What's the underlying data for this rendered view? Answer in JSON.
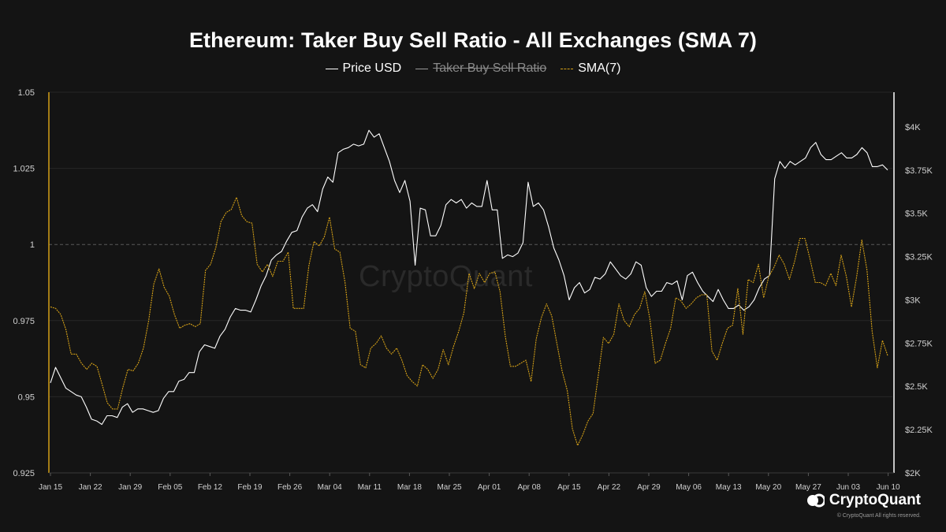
{
  "title": "Ethereum: Taker Buy Sell Ratio - All Exchanges (SMA 7)",
  "legend": [
    {
      "label": "Price USD",
      "color": "#ffffff",
      "hidden": false
    },
    {
      "label": "Taker Buy Sell Ratio",
      "color": "#9a9a9a",
      "hidden": true
    },
    {
      "label": "SMA(7)",
      "color": "#d4a017",
      "hidden": false
    }
  ],
  "watermark": "CryptoQuant",
  "brand": {
    "name": "CryptoQuant",
    "copyright": "© CryptoQuant All rights reserved."
  },
  "chart_data": {
    "type": "line",
    "title": "Ethereum: Taker Buy Sell Ratio - All Exchanges (SMA 7)",
    "x_tick_labels": [
      "Jan 15",
      "Jan 22",
      "Jan 29",
      "Feb 05",
      "Feb 12",
      "Feb 19",
      "Feb 26",
      "Mar 04",
      "Mar 11",
      "Mar 18",
      "Mar 25",
      "Apr 01",
      "Apr 08",
      "Apr 15",
      "Apr 22",
      "Apr 29",
      "May 06",
      "May 13",
      "May 20",
      "May 27",
      "Jun 03",
      "Jun 10"
    ],
    "x_range": [
      "Jan 15",
      "Jun 11"
    ],
    "left_axis": {
      "ticks": [
        "0.925",
        "0.95",
        "0.975",
        "1",
        "1.025",
        "1.05"
      ],
      "range": [
        0.925,
        1.05
      ],
      "reference_line": 1.0
    },
    "right_axis": {
      "ticks": [
        "$2K",
        "$2.25K",
        "$2.5K",
        "$2.75K",
        "$3K",
        "$3.25K",
        "$3.5K",
        "$3.75K",
        "$4K"
      ],
      "range": [
        2000,
        4200
      ]
    },
    "series": [
      {
        "name": "Price USD",
        "axis": "right",
        "color": "#ffffff",
        "values": [
          2520,
          2610,
          2550,
          2490,
          2470,
          2450,
          2440,
          2380,
          2310,
          2300,
          2280,
          2330,
          2330,
          2320,
          2380,
          2400,
          2350,
          2370,
          2370,
          2360,
          2350,
          2360,
          2430,
          2470,
          2470,
          2530,
          2540,
          2580,
          2580,
          2700,
          2740,
          2730,
          2720,
          2790,
          2830,
          2900,
          2950,
          2940,
          2940,
          2930,
          3000,
          3080,
          3140,
          3230,
          3260,
          3280,
          3340,
          3390,
          3400,
          3480,
          3530,
          3550,
          3510,
          3640,
          3710,
          3680,
          3850,
          3870,
          3880,
          3900,
          3890,
          3900,
          3980,
          3940,
          3960,
          3880,
          3800,
          3690,
          3620,
          3690,
          3570,
          3200,
          3530,
          3520,
          3370,
          3370,
          3430,
          3550,
          3580,
          3560,
          3580,
          3530,
          3560,
          3540,
          3540,
          3690,
          3520,
          3520,
          3240,
          3260,
          3250,
          3270,
          3330,
          3680,
          3540,
          3560,
          3520,
          3420,
          3300,
          3230,
          3140,
          3000,
          3070,
          3100,
          3040,
          3060,
          3130,
          3120,
          3150,
          3220,
          3180,
          3140,
          3120,
          3150,
          3220,
          3200,
          3070,
          3020,
          3050,
          3050,
          3100,
          3090,
          3110,
          3000,
          3140,
          3160,
          3100,
          3050,
          3020,
          2990,
          3060,
          3000,
          2950,
          2950,
          2970,
          2940,
          2960,
          3000,
          3070,
          3120,
          3140,
          3700,
          3800,
          3760,
          3800,
          3780,
          3800,
          3820,
          3880,
          3910,
          3840,
          3810,
          3810,
          3830,
          3850,
          3820,
          3820,
          3840,
          3880,
          3850,
          3770,
          3770,
          3780,
          3750
        ],
        "note": "daily closing price in USD, Jan 15 - Jun 11"
      },
      {
        "name": "SMA(7)",
        "axis": "left",
        "color": "#d4a017",
        "values": [
          0.9795,
          0.979,
          0.977,
          0.972,
          0.964,
          0.964,
          0.961,
          0.959,
          0.961,
          0.96,
          0.954,
          0.948,
          0.946,
          0.946,
          0.953,
          0.959,
          0.9585,
          0.961,
          0.966,
          0.975,
          0.987,
          0.992,
          0.986,
          0.983,
          0.977,
          0.9725,
          0.9735,
          0.974,
          0.973,
          0.974,
          0.9915,
          0.9935,
          0.999,
          1.0075,
          1.0105,
          1.0115,
          1.0155,
          1.0095,
          1.0075,
          1.007,
          0.9935,
          0.991,
          0.9935,
          0.9895,
          0.9945,
          0.9945,
          0.9975,
          0.979,
          0.979,
          0.979,
          0.993,
          1.001,
          0.9995,
          1.0025,
          1.009,
          0.9985,
          0.9975,
          0.9875,
          0.9725,
          0.9715,
          0.9605,
          0.9595,
          0.966,
          0.9675,
          0.97,
          0.966,
          0.964,
          0.966,
          0.962,
          0.957,
          0.955,
          0.9535,
          0.9605,
          0.959,
          0.956,
          0.959,
          0.9655,
          0.9605,
          0.9665,
          0.9715,
          0.9775,
          0.9905,
          0.9855,
          0.9905,
          0.9875,
          0.9905,
          0.991,
          0.9845,
          0.97,
          0.96,
          0.96,
          0.961,
          0.962,
          0.955,
          0.969,
          0.976,
          0.9805,
          0.9765,
          0.9675,
          0.9585,
          0.952,
          0.9395,
          0.934,
          0.9375,
          0.942,
          0.9445,
          0.957,
          0.9695,
          0.9675,
          0.9705,
          0.9805,
          0.975,
          0.973,
          0.977,
          0.979,
          0.9845,
          0.9755,
          0.961,
          0.962,
          0.9675,
          0.9725,
          0.9825,
          0.9815,
          0.979,
          0.9805,
          0.9825,
          0.9835,
          0.9835,
          0.965,
          0.962,
          0.9675,
          0.9725,
          0.9735,
          0.9855,
          0.9705,
          0.9885,
          0.9875,
          0.9935,
          0.9825,
          0.9895,
          0.9925,
          0.9965,
          0.9935,
          0.9885,
          0.9945,
          1.002,
          1.002,
          0.995,
          0.9875,
          0.9875,
          0.9865,
          0.9905,
          0.9865,
          0.9965,
          0.9895,
          0.9795,
          0.9895,
          1.0015,
          0.9915,
          0.9715,
          0.9595,
          0.9685,
          0.9635
        ]
      }
    ],
    "hidden_series": [
      "Taker Buy Sell Ratio"
    ]
  }
}
